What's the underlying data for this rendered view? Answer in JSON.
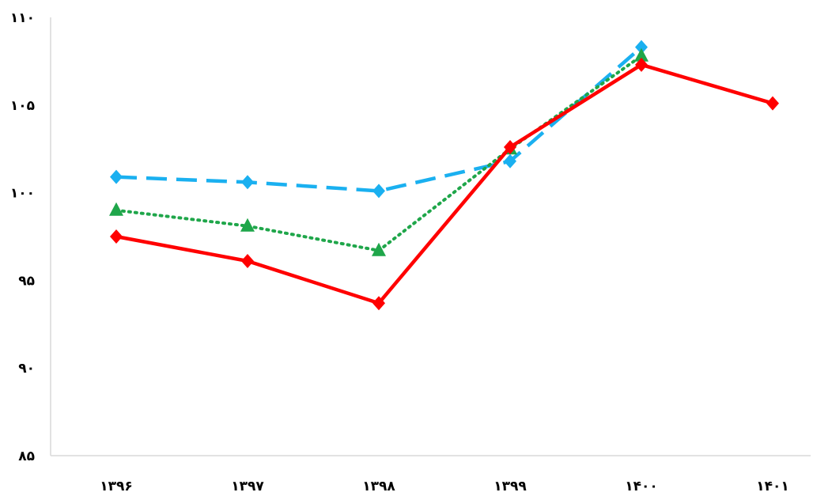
{
  "chart_data": {
    "type": "line",
    "categories": [
      "۱۳۹۶",
      "۱۳۹۷",
      "۱۳۹۸",
      "۱۳۹۹",
      "۱۴۰۰",
      "۱۴۰۱"
    ],
    "y_tick_labels": [
      "۸۵",
      "۹۰",
      "۹۵",
      "۱۰۰",
      "۱۰۵",
      "۱۱۰"
    ],
    "ylim": [
      85,
      110
    ],
    "grid": false,
    "legend": "none",
    "series": [
      {
        "style": "solid",
        "marker": "diamond",
        "color": "#ff0000",
        "values": [
          97.5,
          96.1,
          93.7,
          102.6,
          107.3,
          105.1
        ]
      },
      {
        "style": "dotted",
        "marker": "triangle",
        "color": "#1fa64a",
        "values": [
          99.0,
          98.1,
          96.7,
          102.5,
          107.8,
          null
        ]
      },
      {
        "style": "dashed",
        "marker": "diamond",
        "color": "#1ab0f0",
        "values": [
          100.9,
          100.6,
          100.1,
          101.8,
          108.3,
          null
        ]
      }
    ]
  }
}
